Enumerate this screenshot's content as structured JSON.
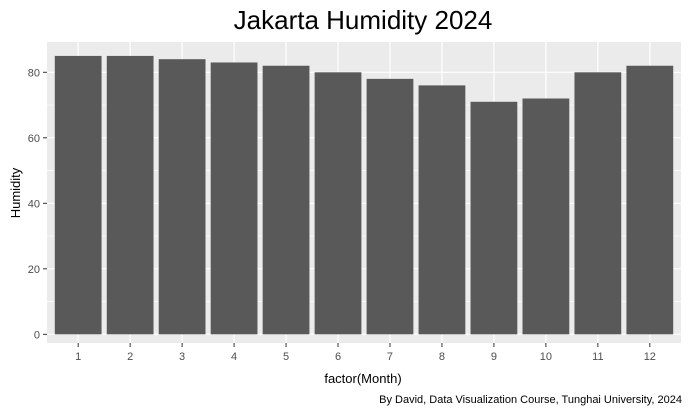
{
  "chart_data": {
    "type": "bar",
    "title": "Jakarta Humidity 2024",
    "xlabel": "factor(Month)",
    "ylabel": "Humidity",
    "caption": "By David, Data Visualization Course, Tunghai University, 2024",
    "categories": [
      "1",
      "2",
      "3",
      "4",
      "5",
      "6",
      "7",
      "8",
      "9",
      "10",
      "11",
      "12"
    ],
    "values": [
      85,
      85,
      84,
      83,
      82,
      80,
      78,
      76,
      71,
      72,
      80,
      82
    ],
    "ylim": [
      -2.65,
      89.25
    ],
    "yticks": [
      0,
      20,
      40,
      60,
      80
    ],
    "grid": true,
    "legend": "none",
    "colors": {
      "bar": "#595959",
      "panel": "#ebebeb",
      "grid": "#ffffff"
    }
  }
}
